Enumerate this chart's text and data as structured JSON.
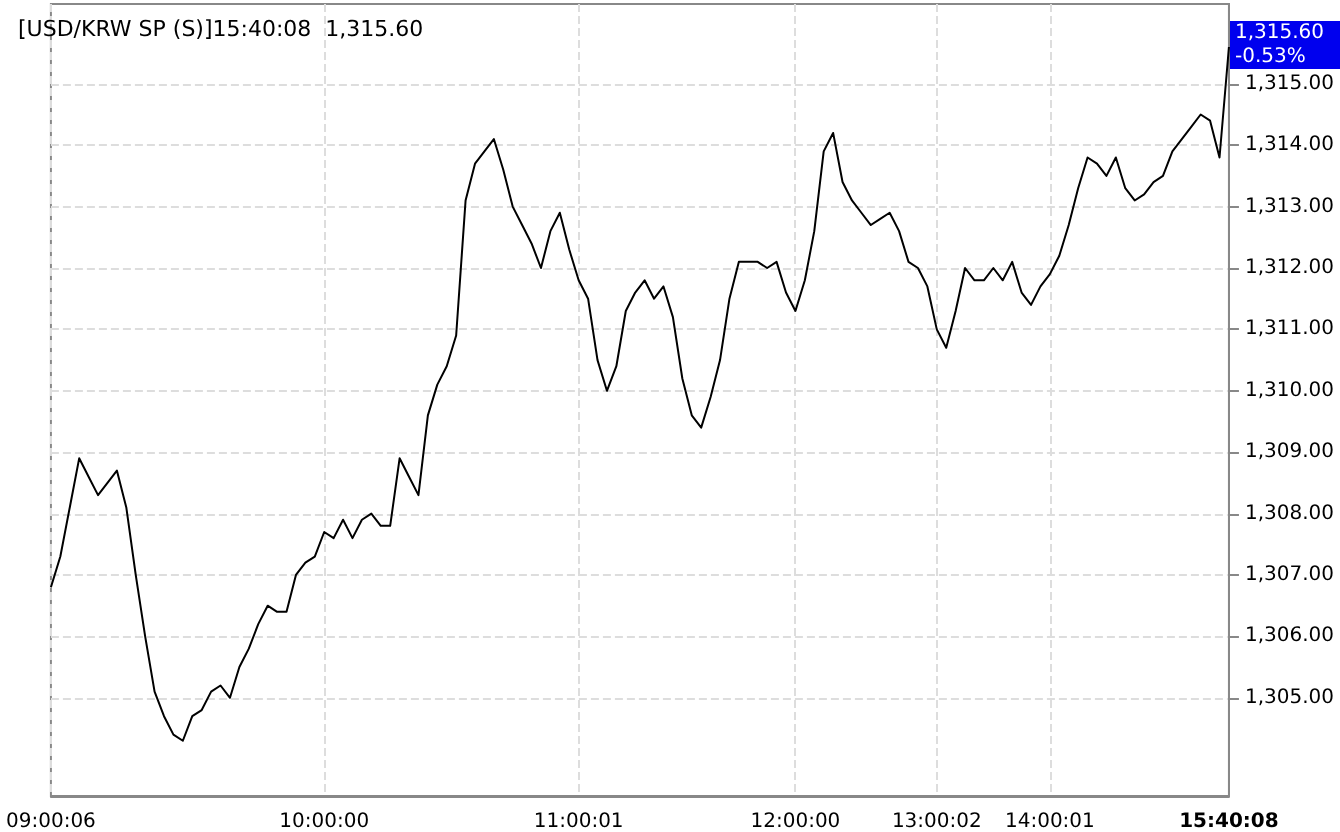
{
  "chart_data": {
    "type": "line",
    "title": "[USD/KRW SP (S)]15:40:08  1,315.60",
    "categories": [
      "09:00:06",
      null,
      null,
      null,
      null,
      null,
      null,
      null,
      null,
      null,
      null,
      null,
      null,
      null,
      null,
      null,
      null,
      null,
      null,
      null,
      null,
      null,
      null,
      null,
      null,
      null,
      null,
      null,
      null,
      "10:00:00",
      null,
      null,
      null,
      null,
      null,
      null,
      null,
      null,
      null,
      null,
      null,
      null,
      null,
      null,
      null,
      null,
      null,
      null,
      null,
      null,
      null,
      null,
      null,
      null,
      null,
      null,
      "11:00:01",
      null,
      null,
      null,
      null,
      null,
      null,
      null,
      null,
      null,
      null,
      null,
      null,
      null,
      null,
      null,
      null,
      null,
      null,
      null,
      null,
      null,
      null,
      "12:00:00",
      null,
      null,
      null,
      null,
      null,
      null,
      null,
      null,
      null,
      null,
      null,
      null,
      null,
      null,
      "13:00:02",
      null,
      null,
      null,
      null,
      null,
      null,
      null,
      null,
      null,
      null,
      null,
      "14:00:01",
      null,
      null,
      null,
      null,
      null,
      null,
      null,
      null,
      null,
      null,
      null,
      null,
      null,
      null,
      null,
      null,
      null,
      null,
      "15:40:08"
    ],
    "series": [
      {
        "color": "#000000",
        "values": [
          1306.8,
          1307.3,
          1308.1,
          1308.9,
          1308.6,
          1308.3,
          1308.5,
          1308.7,
          1308.1,
          1307.0,
          1306.0,
          1305.1,
          1304.7,
          1304.4,
          1304.3,
          1304.7,
          1304.8,
          1305.1,
          1305.2,
          1305.0,
          1305.5,
          1305.8,
          1306.2,
          1306.5,
          1306.4,
          1306.4,
          1307.0,
          1307.2,
          1307.3,
          1307.7,
          1307.6,
          1307.9,
          1307.6,
          1307.9,
          1308.0,
          1307.8,
          1307.8,
          1308.9,
          1308.6,
          1308.3,
          1309.6,
          1310.1,
          1310.4,
          1310.9,
          1313.1,
          1313.7,
          1313.9,
          1314.1,
          1313.6,
          1313.0,
          1312.7,
          1312.4,
          1312.0,
          1312.6,
          1312.9,
          1312.3,
          1311.8,
          1311.5,
          1310.5,
          1310.0,
          1310.4,
          1311.3,
          1311.6,
          1311.8,
          1311.5,
          1311.7,
          1311.2,
          1310.2,
          1309.6,
          1309.4,
          1309.9,
          1310.5,
          1311.5,
          1312.1,
          1312.1,
          1312.1,
          1312.0,
          1312.1,
          1311.6,
          1311.3,
          1311.8,
          1312.6,
          1313.9,
          1314.2,
          1313.4,
          1313.1,
          1312.9,
          1312.7,
          1312.8,
          1312.9,
          1312.6,
          1312.1,
          1312.0,
          1311.7,
          1311.0,
          1310.7,
          1311.3,
          1312.0,
          1311.8,
          1311.8,
          1312.0,
          1311.8,
          1312.1,
          1311.6,
          1311.4,
          1311.7,
          1311.9,
          1312.2,
          1312.7,
          1313.3,
          1313.8,
          1313.7,
          1313.5,
          1313.8,
          1313.3,
          1313.1,
          1313.2,
          1313.4,
          1313.5,
          1313.9,
          1314.1,
          1314.3,
          1314.5,
          1314.4,
          1313.8,
          1315.6
        ]
      }
    ],
    "ylim": [
      1303.4,
      1316.3
    ],
    "yticks": [
      {
        "value": 1305,
        "label": "1,305.00"
      },
      {
        "value": 1306,
        "label": "1,306.00"
      },
      {
        "value": 1307,
        "label": "1,307.00"
      },
      {
        "value": 1308,
        "label": "1,308.00"
      },
      {
        "value": 1309,
        "label": "1,309.00"
      },
      {
        "value": 1310,
        "label": "1,310.00"
      },
      {
        "value": 1311,
        "label": "1,311.00"
      },
      {
        "value": 1312,
        "label": "1,312.00"
      },
      {
        "value": 1313,
        "label": "1,313.00"
      },
      {
        "value": 1314,
        "label": "1,314.00"
      },
      {
        "value": 1315,
        "label": "1,315.00"
      }
    ],
    "grid": true,
    "marker": "none",
    "line_style": "solid",
    "annotations": [
      {
        "text": "1,315.60",
        "x": "15:40:08",
        "y": 1315.6
      },
      {
        "text": "-0.53%",
        "x": "15:40:08",
        "y": 1315.6
      }
    ]
  }
}
